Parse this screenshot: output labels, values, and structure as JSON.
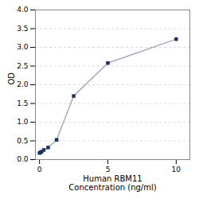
{
  "chart_data": {
    "type": "line",
    "x": [
      0,
      0.078,
      0.156,
      0.313,
      0.625,
      1.25,
      2.5,
      5,
      10
    ],
    "values": [
      0.176,
      0.196,
      0.212,
      0.258,
      0.322,
      0.528,
      1.7,
      2.58,
      3.22
    ],
    "xlabel": "Human RBM11\nConcentration (ng/ml)",
    "ylabel": "OD",
    "xlim": [
      -0.3,
      11
    ],
    "ylim": [
      0,
      4
    ],
    "xticks": [
      0,
      5,
      10
    ],
    "yticks": [
      {
        "value": 0,
        "label": "0.0"
      },
      0.5,
      {
        "value": 1,
        "label": "1.0"
      },
      1.5,
      {
        "value": 2,
        "label": "2.0"
      },
      2.5,
      {
        "value": 3,
        "label": "3.0"
      },
      3.5,
      {
        "value": 4,
        "label": "4.0"
      }
    ],
    "grid": true,
    "color": "#1a3060",
    "marker": "square"
  }
}
